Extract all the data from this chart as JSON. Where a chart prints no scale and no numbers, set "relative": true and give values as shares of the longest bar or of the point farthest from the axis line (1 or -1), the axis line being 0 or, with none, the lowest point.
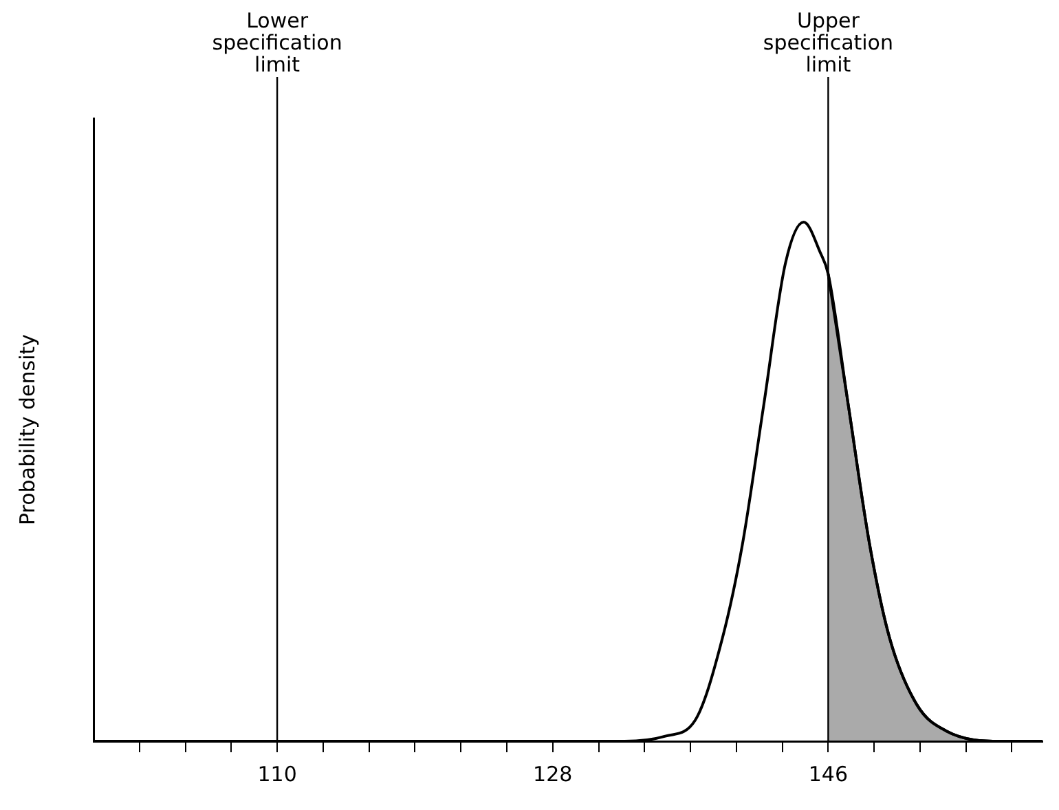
{
  "chart_data": {
    "type": "line",
    "relative": true,
    "ylabel": "Probability density",
    "xlim": [
      98,
      160
    ],
    "xticks": [
      {
        "value": 101,
        "label": null
      },
      {
        "value": 104,
        "label": null
      },
      {
        "value": 107,
        "label": null
      },
      110,
      {
        "value": 113,
        "label": null
      },
      {
        "value": 116,
        "label": null
      },
      {
        "value": 119,
        "label": null
      },
      {
        "value": 122,
        "label": null
      },
      {
        "value": 125,
        "label": null
      },
      128,
      {
        "value": 131,
        "label": null
      },
      {
        "value": 134,
        "label": null
      },
      {
        "value": 137,
        "label": null
      },
      {
        "value": 140,
        "label": null
      },
      {
        "value": 143,
        "label": null
      },
      146,
      {
        "value": 149,
        "label": null
      },
      {
        "value": 152,
        "label": null
      },
      {
        "value": 155,
        "label": null
      },
      {
        "value": 158,
        "label": null
      }
    ],
    "series": [
      {
        "color": "#000000",
        "x": [
          98,
          120,
          130,
          132.7,
          135.4,
          137.3,
          139.1,
          140.4,
          141.8,
          143.2,
          144.4,
          145.5,
          146.0,
          147.3,
          148.7,
          150.0,
          151.8,
          153.7,
          157.3,
          160
        ],
        "values": [
          0,
          0,
          0,
          0,
          0.01,
          0.04,
          0.2,
          0.38,
          0.65,
          0.92,
          1.0,
          0.94,
          0.9,
          0.65,
          0.38,
          0.2,
          0.07,
          0.02,
          0,
          0
        ]
      },
      {
        "type": "area",
        "color": "#000000",
        "x": [
          146.0,
          147.3,
          148.7,
          150.0,
          151.8,
          153.7,
          157.3,
          160
        ],
        "values": [
          0.9,
          0.65,
          0.38,
          0.2,
          0.07,
          0.02,
          0,
          0
        ]
      }
    ],
    "ref_lines": [
      {
        "axis": "x",
        "value": 110,
        "label": "Lower specification limit"
      },
      {
        "axis": "x",
        "value": 146,
        "label": "Upper specification limit"
      }
    ],
    "grid": false,
    "legend": false,
    "marker": "none",
    "line_style": "solid"
  }
}
